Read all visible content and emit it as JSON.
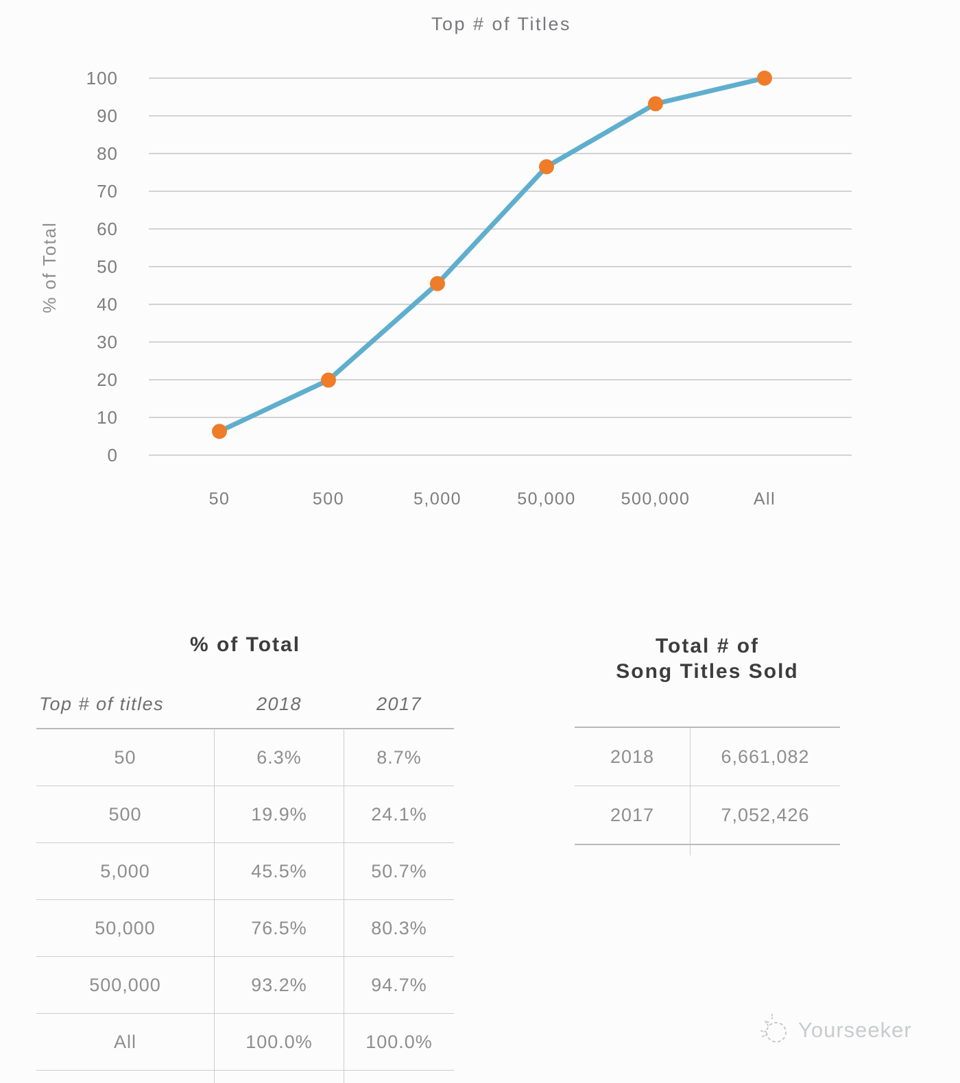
{
  "chart_data": {
    "type": "line",
    "title": "Top # of Titles",
    "ylabel": "% of Total",
    "categories": [
      "50",
      "500",
      "5,000",
      "50,000",
      "500,000",
      "All"
    ],
    "series": [
      {
        "name": "2018",
        "values": [
          6.3,
          19.9,
          45.5,
          76.5,
          93.2,
          100.0
        ]
      }
    ],
    "ylim": [
      0,
      100
    ],
    "ytick_step": 10,
    "grid": true,
    "legend_position": "none",
    "line_color": "#5FAECE",
    "marker_color": "#EE7C28",
    "grid_color": "#d2d2d2",
    "tick_color": "#7d7d7d"
  },
  "percent_table": {
    "title": "% of Total",
    "columns": [
      "Top # of titles",
      "2018",
      "2017"
    ],
    "rows": [
      [
        "50",
        "6.3%",
        "8.7%"
      ],
      [
        "500",
        "19.9%",
        "24.1%"
      ],
      [
        "5,000",
        "45.5%",
        "50.7%"
      ],
      [
        "50,000",
        "76.5%",
        "80.3%"
      ],
      [
        "500,000",
        "93.2%",
        "94.7%"
      ],
      [
        "All",
        "100.0%",
        "100.0%"
      ]
    ]
  },
  "totals_table": {
    "title_line1": "Total # of",
    "title_line2": "Song Titles Sold",
    "rows": [
      [
        "2018",
        "6,661,082"
      ],
      [
        "2017",
        "7,052,426"
      ]
    ]
  },
  "watermark": {
    "label": "Yourseeker"
  }
}
